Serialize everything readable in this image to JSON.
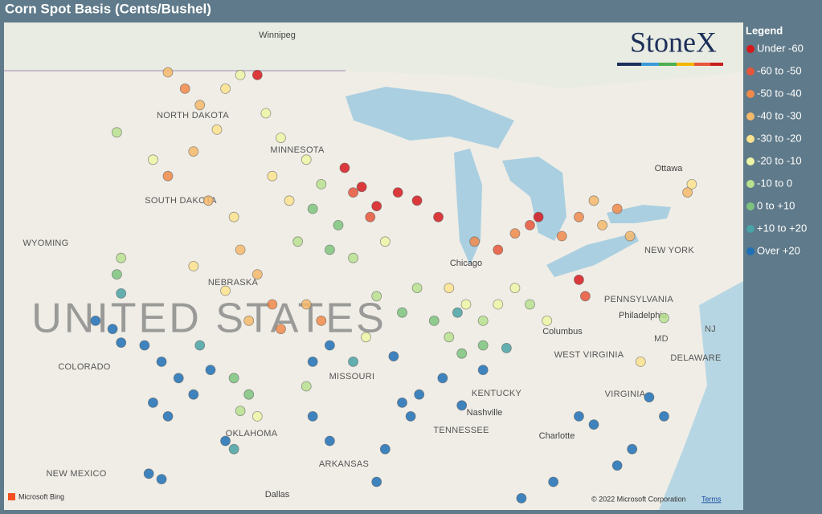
{
  "title": "Corn Spot Basis (Cents/Bushel)",
  "brand": "StoneX",
  "legend": {
    "title": "Legend",
    "items": [
      {
        "label": "Under -60",
        "color": "#d7191c"
      },
      {
        "label": "-60 to -50",
        "color": "#e8553a"
      },
      {
        "label": "-50 to -40",
        "color": "#f08a4b"
      },
      {
        "label": "-40 to -30",
        "color": "#f6b96b"
      },
      {
        "label": "-30 to -20",
        "color": "#fde38f"
      },
      {
        "label": "-20 to -10",
        "color": "#eef5a6"
      },
      {
        "label": "-10 to 0",
        "color": "#b8e08f"
      },
      {
        "label": "0 to +10",
        "color": "#7ec47e"
      },
      {
        "label": "+10 to +20",
        "color": "#4aa3a6"
      },
      {
        "label": "Over +20",
        "color": "#1f70b6"
      }
    ]
  },
  "map_labels": [
    "Winnipeg",
    "NORTH DAKOTA",
    "MINNESOTA",
    "SOUTH DAKOTA",
    "WYOMING",
    "NEBRASKA",
    "UNITED STATES",
    "COLORADO",
    "MISSOURI",
    "OKLAHOMA",
    "NEW MEXICO",
    "ARKANSAS",
    "TENNESSEE",
    "KENTUCKY",
    "WEST VIRGINIA",
    "VIRGINIA",
    "PENNSYLVANIA",
    "NEW YORK",
    "Ottawa",
    "Chicago",
    "Columbus",
    "Nashville",
    "Dallas",
    "Philadelphia",
    "Charlotte",
    "DELAWARE",
    "MD",
    "NJ"
  ],
  "attribution": {
    "provider": "Microsoft Bing",
    "copyright": "© 2022 Microsoft Corporation",
    "terms": "Terms"
  },
  "points": [
    [
      -93.3,
      45.4,
      0
    ],
    [
      -92.5,
      44.7,
      0
    ],
    [
      -91.8,
      44.0,
      0
    ],
    [
      -90.8,
      44.5,
      0
    ],
    [
      -89.9,
      44.2,
      0
    ],
    [
      -88.9,
      43.6,
      0
    ],
    [
      -92.1,
      43.6,
      1
    ],
    [
      -92.9,
      44.5,
      1
    ],
    [
      -97.4,
      48.8,
      0
    ],
    [
      -87.2,
      42.7,
      2
    ],
    [
      -86.1,
      42.4,
      1
    ],
    [
      -85.3,
      43.0,
      2
    ],
    [
      -84.6,
      43.3,
      1
    ],
    [
      -84.2,
      43.6,
      0
    ],
    [
      -83.1,
      42.9,
      2
    ],
    [
      -82.3,
      43.6,
      2
    ],
    [
      -81.2,
      43.3,
      3
    ],
    [
      -80.5,
      43.9,
      2
    ],
    [
      -81.6,
      44.2,
      3
    ],
    [
      -79.9,
      42.9,
      3
    ],
    [
      -82.3,
      41.3,
      0
    ],
    [
      -82.0,
      40.7,
      1
    ],
    [
      -77.0,
      44.8,
      4
    ],
    [
      -77.2,
      44.5,
      3
    ],
    [
      -101.6,
      48.9,
      3
    ],
    [
      -100.8,
      48.3,
      2
    ],
    [
      -100.1,
      47.7,
      3
    ],
    [
      -98.9,
      48.3,
      4
    ],
    [
      -98.2,
      48.8,
      5
    ],
    [
      -97.0,
      47.4,
      5
    ],
    [
      -99.3,
      46.8,
      4
    ],
    [
      -100.4,
      46.0,
      3
    ],
    [
      -101.6,
      45.1,
      2
    ],
    [
      -104.0,
      46.7,
      6
    ],
    [
      -102.3,
      45.7,
      5
    ],
    [
      -96.3,
      46.5,
      5
    ],
    [
      -95.1,
      45.7,
      5
    ],
    [
      -94.4,
      44.8,
      6
    ],
    [
      -95.9,
      44.2,
      4
    ],
    [
      -96.7,
      45.1,
      4
    ],
    [
      -94.8,
      43.9,
      7
    ],
    [
      -93.6,
      43.3,
      7
    ],
    [
      -94.0,
      42.4,
      7
    ],
    [
      -95.5,
      42.7,
      6
    ],
    [
      -92.9,
      42.1,
      6
    ],
    [
      -91.4,
      42.7,
      5
    ],
    [
      -99.7,
      44.2,
      3
    ],
    [
      -98.5,
      43.6,
      4
    ],
    [
      -98.2,
      42.4,
      3
    ],
    [
      -97.4,
      41.5,
      3
    ],
    [
      -98.9,
      40.9,
      4
    ],
    [
      -96.7,
      40.4,
      2
    ],
    [
      -97.8,
      39.8,
      3
    ],
    [
      -96.3,
      39.5,
      2
    ],
    [
      -95.1,
      40.4,
      3
    ],
    [
      -94.4,
      39.8,
      2
    ],
    [
      -100.4,
      41.8,
      4
    ],
    [
      -103.8,
      42.1,
      6
    ],
    [
      -104.0,
      41.5,
      7
    ],
    [
      -103.8,
      40.8,
      8
    ],
    [
      -102.7,
      38.9,
      9
    ],
    [
      -101.9,
      38.3,
      9
    ],
    [
      -101.1,
      37.7,
      9
    ],
    [
      -100.4,
      37.1,
      9
    ],
    [
      -102.3,
      36.8,
      9
    ],
    [
      -101.6,
      36.3,
      9
    ],
    [
      -99.6,
      38.0,
      9
    ],
    [
      -105.0,
      39.8,
      9
    ],
    [
      -104.2,
      39.5,
      9
    ],
    [
      -103.8,
      39.0,
      9
    ],
    [
      -100.1,
      38.9,
      8
    ],
    [
      -98.5,
      37.7,
      7
    ],
    [
      -97.8,
      37.1,
      7
    ],
    [
      -98.2,
      36.5,
      6
    ],
    [
      -97.4,
      36.3,
      5
    ],
    [
      -98.9,
      35.4,
      9
    ],
    [
      -98.5,
      35.1,
      8
    ],
    [
      -102.5,
      34.2,
      9
    ],
    [
      -101.9,
      34.0,
      9
    ],
    [
      -94.8,
      38.3,
      9
    ],
    [
      -94.0,
      38.9,
      9
    ],
    [
      -92.9,
      38.3,
      8
    ],
    [
      -94.8,
      36.3,
      9
    ],
    [
      -94.0,
      35.4,
      9
    ],
    [
      -91.4,
      35.1,
      9
    ],
    [
      -91.8,
      33.9,
      9
    ],
    [
      -90.6,
      36.8,
      9
    ],
    [
      -90.2,
      36.3,
      9
    ],
    [
      -89.8,
      37.1,
      9
    ],
    [
      -88.7,
      37.7,
      9
    ],
    [
      -91.0,
      38.5,
      9
    ],
    [
      -95.1,
      37.4,
      6
    ],
    [
      -91.8,
      40.7,
      6
    ],
    [
      -90.6,
      40.1,
      7
    ],
    [
      -89.9,
      41.0,
      6
    ],
    [
      -89.1,
      39.8,
      7
    ],
    [
      -88.4,
      39.2,
      6
    ],
    [
      -87.6,
      40.4,
      5
    ],
    [
      -86.8,
      39.8,
      6
    ],
    [
      -86.1,
      40.4,
      5
    ],
    [
      -85.3,
      41.0,
      5
    ],
    [
      -84.6,
      40.4,
      6
    ],
    [
      -83.8,
      39.8,
      5
    ],
    [
      -86.8,
      38.9,
      7
    ],
    [
      -85.7,
      38.8,
      8
    ],
    [
      -88.0,
      40.1,
      8
    ],
    [
      -87.8,
      38.6,
      7
    ],
    [
      -92.3,
      39.2,
      5
    ],
    [
      -88.4,
      41.0,
      4
    ],
    [
      -82.3,
      36.3,
      9
    ],
    [
      -81.6,
      36.0,
      9
    ],
    [
      -79.0,
      37.0,
      9
    ],
    [
      -78.3,
      36.3,
      9
    ],
    [
      -79.8,
      35.1,
      9
    ],
    [
      -80.5,
      34.5,
      9
    ],
    [
      -83.5,
      33.9,
      9
    ],
    [
      -86.8,
      38.0,
      9
    ],
    [
      -87.8,
      36.7,
      9
    ],
    [
      -79.4,
      38.3,
      4
    ],
    [
      -78.3,
      39.9,
      6
    ],
    [
      -85.0,
      33.3,
      9
    ]
  ]
}
